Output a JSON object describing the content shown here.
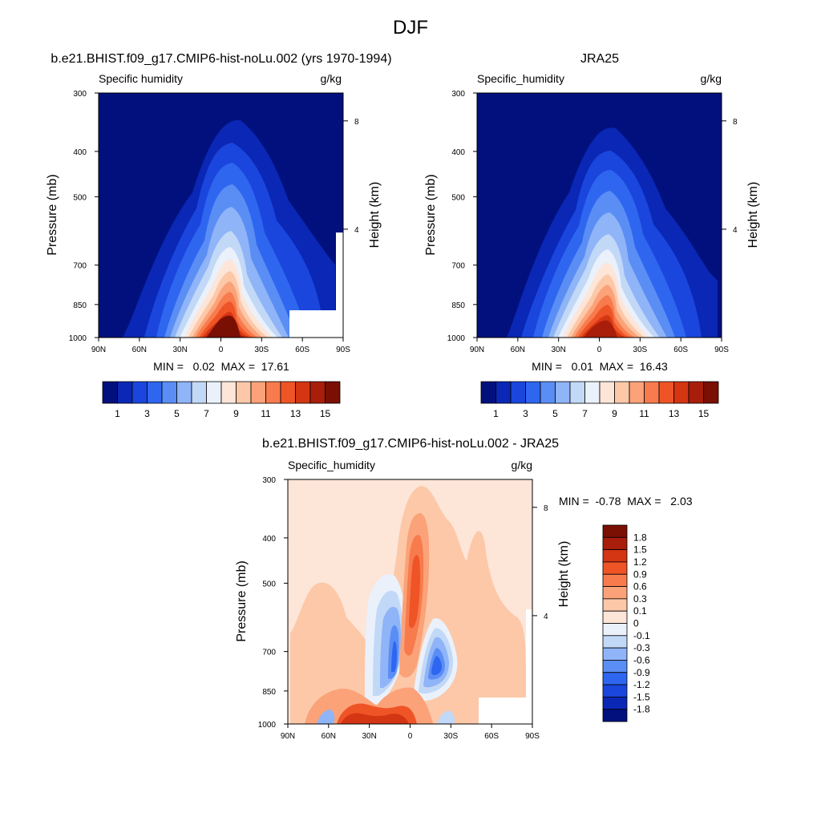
{
  "figure": {
    "title": "DJF",
    "units": "g/kg"
  },
  "chart_data": [
    {
      "id": "model",
      "type": "heatmap",
      "title": "b.e21.BHIST.f09_g17.CMIP6-hist-noLu.002 (yrs 1970-1994)",
      "variable": "Specific humidity",
      "units": "g/kg",
      "xlabel": "",
      "ylabel": "Pressure (mb)",
      "y2label": "Height (km)",
      "x_ticks": [
        "90N",
        "60N",
        "30N",
        "0",
        "30S",
        "60S",
        "90S"
      ],
      "y_ticks": [
        "300",
        "400",
        "500",
        "700",
        "850",
        "1000"
      ],
      "y2_ticks": [
        "8",
        "4"
      ],
      "stats_text": "MIN =   0.02  MAX =  17.61",
      "min": 0.02,
      "max": 17.61,
      "colorbar_labels": [
        "1",
        "3",
        "5",
        "7",
        "9",
        "11",
        "13",
        "15"
      ],
      "colorbar_colors": [
        "#02107e",
        "#0a27b5",
        "#1a46dd",
        "#2e66f0",
        "#5a8ef5",
        "#8fb4f7",
        "#c2d8f7",
        "#eaf1fb",
        "#fde5d8",
        "#fcc8a8",
        "#fba279",
        "#f77b4d",
        "#ef5426",
        "#d43513",
        "#a81e0a",
        "#7a0f04"
      ]
    },
    {
      "id": "obs",
      "type": "heatmap",
      "title": "JRA25",
      "variable": "Specific_humidity",
      "units": "g/kg",
      "xlabel": "",
      "ylabel": "Pressure (mb)",
      "y2label": "Height (km)",
      "x_ticks": [
        "90N",
        "60N",
        "30N",
        "0",
        "30S",
        "60S",
        "90S"
      ],
      "y_ticks": [
        "300",
        "400",
        "500",
        "700",
        "850",
        "1000"
      ],
      "y2_ticks": [
        "8",
        "4"
      ],
      "stats_text": "MIN =   0.01  MAX =  16.43",
      "min": 0.01,
      "max": 16.43,
      "colorbar_labels": [
        "1",
        "3",
        "5",
        "7",
        "9",
        "11",
        "13",
        "15"
      ],
      "colorbar_colors": [
        "#02107e",
        "#0a27b5",
        "#1a46dd",
        "#2e66f0",
        "#5a8ef5",
        "#8fb4f7",
        "#c2d8f7",
        "#eaf1fb",
        "#fde5d8",
        "#fcc8a8",
        "#fba279",
        "#f77b4d",
        "#ef5426",
        "#d43513",
        "#a81e0a",
        "#7a0f04"
      ]
    },
    {
      "id": "diff",
      "type": "heatmap",
      "title": "b.e21.BHIST.f09_g17.CMIP6-hist-noLu.002 - JRA25",
      "variable": "Specific_humidity",
      "units": "g/kg",
      "xlabel": "",
      "ylabel": "Pressure (mb)",
      "y2label": "Height (km)",
      "x_ticks": [
        "90N",
        "60N",
        "30N",
        "0",
        "30S",
        "60S",
        "90S"
      ],
      "y_ticks": [
        "300",
        "400",
        "500",
        "700",
        "850",
        "1000"
      ],
      "y2_ticks": [
        "8",
        "4"
      ],
      "stats_text": "MIN =  -0.78  MAX =   2.03",
      "min": -0.78,
      "max": 2.03,
      "colorbar_labels": [
        "1.8",
        "1.5",
        "1.2",
        "0.9",
        "0.6",
        "0.3",
        "0.1",
        "0",
        "-0.1",
        "-0.3",
        "-0.6",
        "-0.9",
        "-1.2",
        "-1.5",
        "-1.8"
      ],
      "colorbar_colors": [
        "#7a0f04",
        "#a81e0a",
        "#d43513",
        "#ef5426",
        "#f77b4d",
        "#fba279",
        "#fcc8a8",
        "#fde5d8",
        "#eaf1fb",
        "#c2d8f7",
        "#8fb4f7",
        "#5a8ef5",
        "#2e66f0",
        "#1a46dd",
        "#0a27b5",
        "#02107e"
      ]
    }
  ]
}
